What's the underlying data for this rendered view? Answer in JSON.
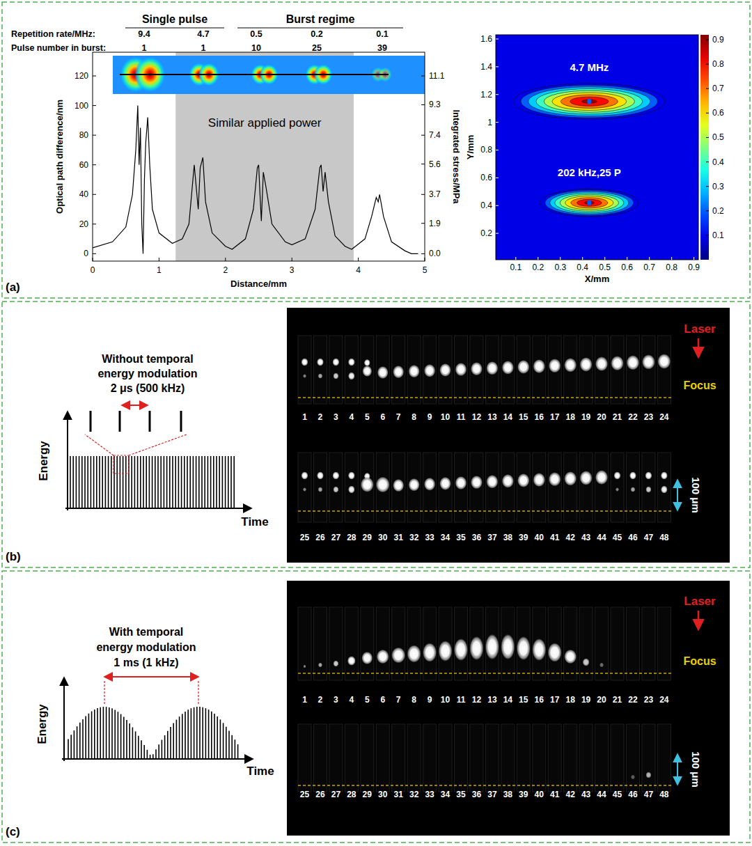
{
  "chart_data": [
    {
      "type": "line",
      "x_label": "Distance/mm",
      "y_label": "Optical path difference/nm",
      "y2_label": "Integrated stress/MPa",
      "annotation": "Similar applied power",
      "shaded_range": [
        1.25,
        3.93
      ],
      "groups": [
        {
          "label": "Single pulse",
          "count": 2
        },
        {
          "label": "Burst regime",
          "count": 3
        }
      ],
      "table_rows": [
        {
          "label": "Repetition rate/MHz:",
          "values": [
            9.4,
            4.7,
            0.5,
            0.2,
            0.1
          ]
        },
        {
          "label": "Pulse number in burst:",
          "values": [
            1,
            1,
            10,
            25,
            39
          ]
        }
      ],
      "x": [
        0,
        0.3,
        0.5,
        0.6,
        0.65,
        0.68,
        0.7,
        0.72,
        0.74,
        0.76,
        0.78,
        0.8,
        0.83,
        0.86,
        0.9,
        1.0,
        1.2,
        1.35,
        1.45,
        1.5,
        1.53,
        1.56,
        1.59,
        1.62,
        1.66,
        1.7,
        1.8,
        2.0,
        2.1,
        2.3,
        2.42,
        2.48,
        2.5,
        2.52,
        2.54,
        2.57,
        2.61,
        2.7,
        2.9,
        3.0,
        3.2,
        3.35,
        3.42,
        3.44,
        3.47,
        3.5,
        3.55,
        3.65,
        3.8,
        3.9,
        4.1,
        4.2,
        4.27,
        4.3,
        4.32,
        4.38,
        4.5,
        4.7,
        4.8,
        4.9
      ],
      "series": [
        {
          "color": "#000000",
          "values": [
            4,
            8,
            18,
            40,
            70,
            100,
            60,
            85,
            20,
            0,
            50,
            75,
            92,
            60,
            30,
            14,
            7,
            10,
            20,
            45,
            60,
            45,
            30,
            58,
            65,
            35,
            14,
            5,
            3,
            10,
            30,
            58,
            60,
            40,
            22,
            55,
            45,
            20,
            8,
            6,
            10,
            30,
            58,
            60,
            42,
            55,
            35,
            12,
            5,
            3,
            10,
            25,
            38,
            35,
            40,
            25,
            8,
            2,
            0,
            0
          ]
        }
      ],
      "xlim": [
        0,
        5
      ],
      "xticks": [
        0,
        1,
        2,
        3,
        4,
        5
      ],
      "ylim": [
        -5,
        136
      ],
      "yticks": [
        0,
        20,
        40,
        60,
        80,
        100,
        120
      ],
      "y2lim": [
        -0.46,
        12.58
      ],
      "y2ticks": [
        {
          "value": 0,
          "label": "0.0"
        },
        1.9,
        3.7,
        5.6,
        7.4,
        9.3,
        11.1
      ]
    },
    {
      "type": "contour",
      "x_label": "X/mm",
      "y_label": "Y/mm",
      "xlim": [
        0.01,
        0.92
      ],
      "xticks": [
        0.1,
        0.2,
        0.3,
        0.4,
        0.5,
        0.6,
        0.7,
        0.8,
        0.9
      ],
      "ylim": [
        0.01,
        1.63
      ],
      "yticks": [
        0.2,
        0.4,
        0.6,
        0.8,
        1,
        1.2,
        1.4,
        1.6
      ],
      "blobs": [
        {
          "label": "4.7 MHz",
          "x": 0.43,
          "y": 1.15,
          "x_radius": 0.34,
          "y_radius": 0.13,
          "peak": 0.9
        },
        {
          "label": "202 kHz,25 P",
          "x": 0.43,
          "y": 0.42,
          "x_radius": 0.22,
          "y_radius": 0.1,
          "peak": 0.9
        }
      ],
      "colorbar": {
        "range": [
          0,
          0.92
        ],
        "ticks": [
          0.1,
          0.2,
          0.3,
          0.4,
          0.5,
          0.6,
          0.7,
          0.8,
          0.9
        ]
      }
    }
  ],
  "figure": {
    "panel_labels": [
      "(a)",
      "(b)",
      "(c)"
    ],
    "panels": [
      {
        "title_lines": [
          "Without temporal",
          "energy modulation",
          "2 μs (500 kHz)"
        ],
        "y_label": "Energy",
        "x_label": "Time",
        "modulated": false,
        "laser": "Laser",
        "focus": "Focus",
        "scale": "100 μm",
        "frames": [
          1,
          2,
          3,
          4,
          5,
          6,
          7,
          8,
          9,
          10,
          11,
          12,
          13,
          14,
          15,
          16,
          17,
          18,
          19,
          20,
          21,
          22,
          23,
          24,
          25,
          26,
          27,
          28,
          29,
          30,
          31,
          32,
          33,
          34,
          35,
          36,
          37,
          38,
          39,
          40,
          41,
          42,
          43,
          44,
          45,
          46,
          47,
          48
        ]
      },
      {
        "title_lines": [
          "With temporal",
          "energy modulation",
          "1 ms (1 kHz)"
        ],
        "y_label": "Energy",
        "x_label": "Time",
        "modulated": true,
        "laser": "Laser",
        "focus": "Focus",
        "scale": "100 μm",
        "frames": [
          1,
          2,
          3,
          4,
          5,
          6,
          7,
          8,
          9,
          10,
          11,
          12,
          13,
          14,
          15,
          16,
          17,
          18,
          19,
          20,
          21,
          22,
          23,
          24,
          25,
          26,
          27,
          28,
          29,
          30,
          31,
          32,
          33,
          34,
          35,
          36,
          37,
          38,
          39,
          40,
          41,
          42,
          43,
          44,
          45,
          46,
          47,
          48
        ]
      }
    ]
  }
}
